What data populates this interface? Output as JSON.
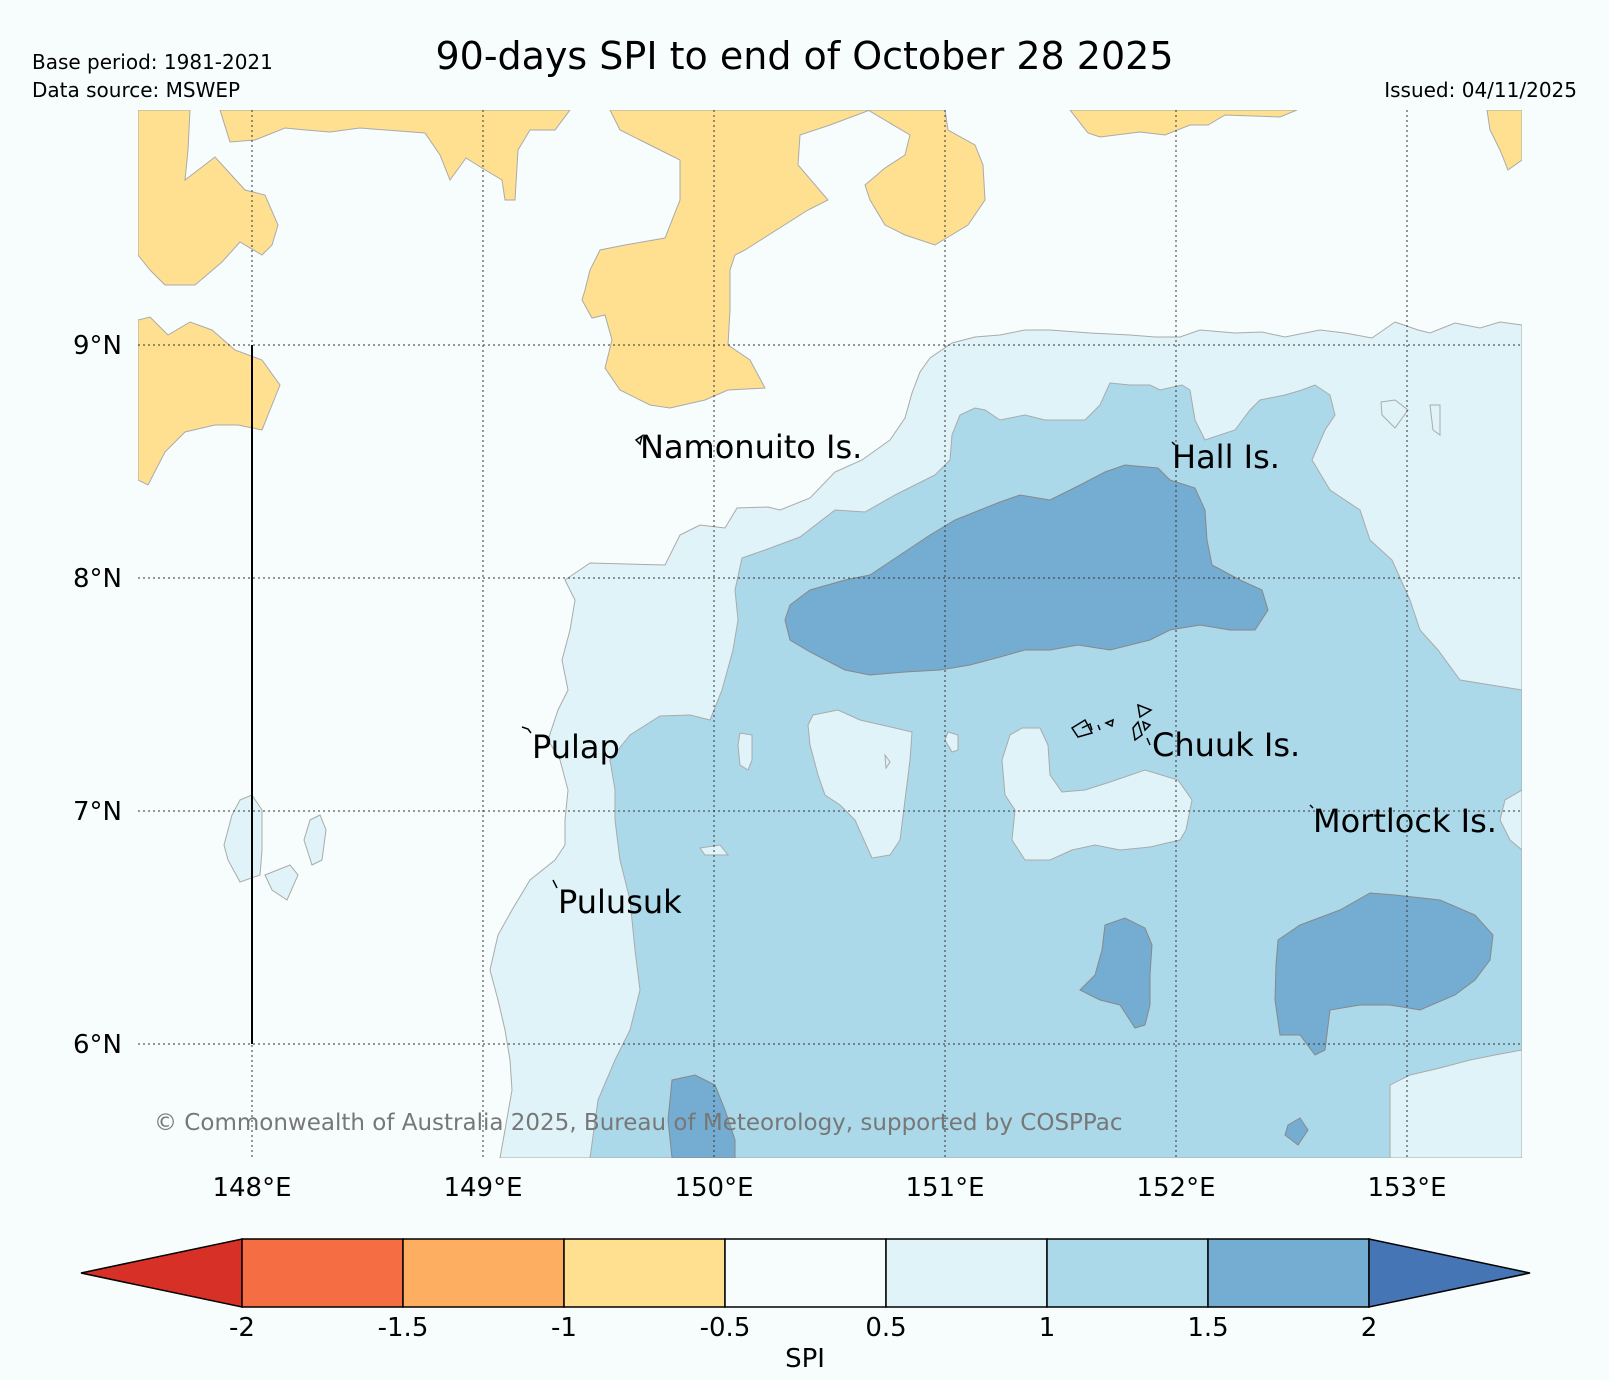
{
  "header": {
    "title": "90-days SPI to end of October 28 2025",
    "base_period": "Base period: 1981-2021",
    "data_source": "Data source: MSWEP",
    "issued": "Issued: 04/11/2025"
  },
  "axes": {
    "lon_labels": [
      "148°E",
      "149°E",
      "150°E",
      "151°E",
      "152°E",
      "153°E"
    ],
    "lat_labels": [
      "9°N",
      "8°N",
      "7°N",
      "6°N"
    ]
  },
  "places": {
    "namonuito": "Namonuito Is.",
    "hall": "Hall Is.",
    "pulap": "Pulap",
    "chuuk": "Chuuk Is.",
    "mortlock": "Mortlock Is.",
    "pulusuk": "Pulusuk"
  },
  "copyright": "© Commonwealth of Australia 2025, Bureau of Meteorology, supported by COSPPac",
  "colorbar": {
    "label": "SPI",
    "ticks": [
      "-2",
      "-1.5",
      "-1",
      "-0.5",
      "0.5",
      "1",
      "1.5",
      "2"
    ],
    "colors": {
      "below_-2": "#d73027",
      "-2_-1.5": "#f46d43",
      "-1.5_-1": "#fdae61",
      "-1_-0.5": "#fee090",
      "-0.5_0.5": "#f7fcfd",
      "0.5_1": "#e0f3f8",
      "1_1.5": "#abd9e9",
      "1.5_2": "#74add1",
      "above_2": "#4575b4"
    }
  }
}
